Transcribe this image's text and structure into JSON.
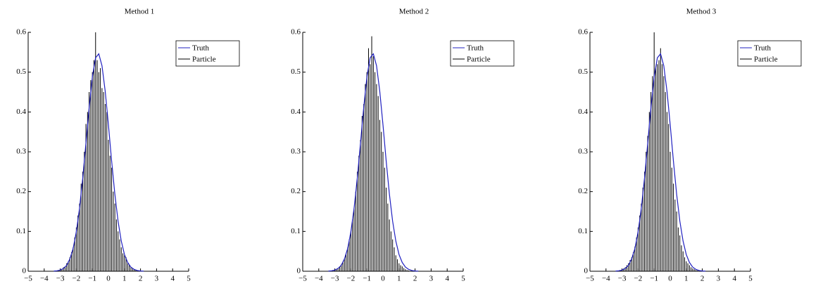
{
  "chart_data": [
    {
      "type": "stem",
      "title": "Method 1",
      "legend": "upper right",
      "grid": false,
      "xlim": [
        -5,
        5
      ],
      "ylim": [
        0,
        0.6
      ],
      "xticks": [
        {
          "value": -5,
          "label": "−5"
        },
        {
          "value": -4,
          "label": "−4"
        },
        {
          "value": -3,
          "label": "−3"
        },
        {
          "value": -2,
          "label": "−2"
        },
        {
          "value": -1,
          "label": "−1"
        },
        0,
        1,
        2,
        3,
        4,
        5
      ],
      "yticks": [
        0,
        0.1,
        0.2,
        0.3,
        0.4,
        0.5,
        0.6
      ],
      "series": [
        {
          "name": "Truth",
          "type": "line",
          "color": "#2020c0",
          "x": [
            -3.4,
            -3.2,
            -3.0,
            -2.8,
            -2.6,
            -2.4,
            -2.2,
            -2.0,
            -1.8,
            -1.6,
            -1.4,
            -1.2,
            -1.0,
            -0.8,
            -0.6,
            -0.4,
            -0.2,
            0,
            0.2,
            0.4,
            0.6,
            0.8,
            1.0,
            1.2,
            1.4,
            1.6,
            1.8,
            2.0,
            2.2
          ],
          "values": [
            0.0004,
            0.0012,
            0.003,
            0.007,
            0.015,
            0.031,
            0.057,
            0.099,
            0.158,
            0.234,
            0.322,
            0.411,
            0.488,
            0.536,
            0.546,
            0.516,
            0.452,
            0.368,
            0.277,
            0.194,
            0.126,
            0.076,
            0.042,
            0.022,
            0.0105,
            0.0047,
            0.0019,
            0.0007,
            0.0003
          ]
        },
        {
          "name": "Particle",
          "type": "stem",
          "color": "#000000",
          "x": [
            -3.1,
            -3.0,
            -2.9,
            -2.8,
            -2.7,
            -2.6,
            -2.5,
            -2.4,
            -2.3,
            -2.2,
            -2.1,
            -2.0,
            -1.9,
            -1.8,
            -1.7,
            -1.6,
            -1.5,
            -1.4,
            -1.3,
            -1.2,
            -1.1,
            -1.0,
            -0.9,
            -0.8,
            -0.7,
            -0.6,
            -0.5,
            -0.4,
            -0.3,
            -0.2,
            -0.1,
            0,
            0.1,
            0.2,
            0.3,
            0.4,
            0.5,
            0.6,
            0.7,
            0.8,
            0.9,
            1.0,
            1.1,
            1.2,
            1.3,
            1.4,
            1.5,
            1.6,
            1.7,
            1.8,
            1.9
          ],
          "values": [
            0.002,
            0.004,
            0.006,
            0.01,
            0.012,
            0.02,
            0.025,
            0.035,
            0.048,
            0.06,
            0.085,
            0.11,
            0.14,
            0.17,
            0.22,
            0.25,
            0.3,
            0.37,
            0.4,
            0.45,
            0.48,
            0.5,
            0.53,
            0.6,
            0.53,
            0.5,
            0.51,
            0.46,
            0.45,
            0.42,
            0.4,
            0.33,
            0.29,
            0.26,
            0.2,
            0.17,
            0.13,
            0.1,
            0.08,
            0.06,
            0.045,
            0.04,
            0.035,
            0.02,
            0.015,
            0.01,
            0.007,
            0.005,
            0.003,
            0.002,
            0.001
          ]
        }
      ]
    },
    {
      "type": "stem",
      "title": "Method 2",
      "legend": "upper right",
      "grid": false,
      "xlim": [
        -5,
        5
      ],
      "ylim": [
        0,
        0.6
      ],
      "xticks": [
        {
          "value": -5,
          "label": "−5"
        },
        {
          "value": -4,
          "label": "−4"
        },
        {
          "value": -3,
          "label": "−3"
        },
        {
          "value": -2,
          "label": "−2"
        },
        {
          "value": -1,
          "label": "−1"
        },
        0,
        1,
        2,
        3,
        4,
        5
      ],
      "yticks": [
        0,
        0.1,
        0.2,
        0.3,
        0.4,
        0.5,
        0.6
      ],
      "series": [
        {
          "name": "Truth",
          "type": "line",
          "color": "#2020c0",
          "x": [
            -3.4,
            -3.2,
            -3.0,
            -2.8,
            -2.6,
            -2.4,
            -2.2,
            -2.0,
            -1.8,
            -1.6,
            -1.4,
            -1.2,
            -1.0,
            -0.8,
            -0.6,
            -0.4,
            -0.2,
            0,
            0.2,
            0.4,
            0.6,
            0.8,
            1.0,
            1.2,
            1.4,
            1.6,
            1.8,
            2.0,
            2.2
          ],
          "values": [
            0.0004,
            0.0012,
            0.003,
            0.007,
            0.015,
            0.031,
            0.057,
            0.099,
            0.158,
            0.234,
            0.322,
            0.411,
            0.488,
            0.536,
            0.546,
            0.516,
            0.452,
            0.368,
            0.277,
            0.194,
            0.126,
            0.076,
            0.042,
            0.022,
            0.0105,
            0.0047,
            0.0019,
            0.0007,
            0.0003
          ]
        },
        {
          "name": "Particle",
          "type": "stem",
          "color": "#000000",
          "x": [
            -3.1,
            -3.0,
            -2.9,
            -2.8,
            -2.7,
            -2.6,
            -2.5,
            -2.4,
            -2.3,
            -2.2,
            -2.1,
            -2.0,
            -1.9,
            -1.8,
            -1.7,
            -1.6,
            -1.5,
            -1.4,
            -1.3,
            -1.2,
            -1.1,
            -1.0,
            -0.9,
            -0.8,
            -0.7,
            -0.6,
            -0.5,
            -0.4,
            -0.3,
            -0.2,
            -0.1,
            0,
            0.1,
            0.2,
            0.3,
            0.4,
            0.5,
            0.6,
            0.7,
            0.8,
            0.9,
            1.0,
            1.1,
            1.2,
            1.3,
            1.4,
            1.5,
            1.6,
            1.7,
            1.8,
            1.9
          ],
          "values": [
            0.001,
            0.003,
            0.005,
            0.008,
            0.012,
            0.017,
            0.024,
            0.032,
            0.045,
            0.06,
            0.08,
            0.1,
            0.13,
            0.16,
            0.2,
            0.25,
            0.29,
            0.33,
            0.39,
            0.42,
            0.47,
            0.5,
            0.56,
            0.52,
            0.59,
            0.54,
            0.5,
            0.47,
            0.44,
            0.38,
            0.35,
            0.3,
            0.26,
            0.21,
            0.17,
            0.13,
            0.1,
            0.08,
            0.06,
            0.04,
            0.03,
            0.02,
            0.015,
            0.012,
            0.008,
            0.005,
            0.003,
            0.002,
            0.001,
            0.001,
            0.0005
          ]
        }
      ]
    },
    {
      "type": "stem",
      "title": "Method 3",
      "legend": "upper right",
      "grid": false,
      "xlim": [
        -5,
        5
      ],
      "ylim": [
        0,
        0.6
      ],
      "xticks": [
        {
          "value": -5,
          "label": "−5"
        },
        {
          "value": -4,
          "label": "−4"
        },
        {
          "value": -3,
          "label": "−3"
        },
        {
          "value": -2,
          "label": "−2"
        },
        {
          "value": -1,
          "label": "−1"
        },
        0,
        1,
        2,
        3,
        4,
        5
      ],
      "yticks": [
        0,
        0.1,
        0.2,
        0.3,
        0.4,
        0.5,
        0.6
      ],
      "series": [
        {
          "name": "Truth",
          "type": "line",
          "color": "#2020c0",
          "x": [
            -3.4,
            -3.2,
            -3.0,
            -2.8,
            -2.6,
            -2.4,
            -2.2,
            -2.0,
            -1.8,
            -1.6,
            -1.4,
            -1.2,
            -1.0,
            -0.8,
            -0.6,
            -0.4,
            -0.2,
            0,
            0.2,
            0.4,
            0.6,
            0.8,
            1.0,
            1.2,
            1.4,
            1.6,
            1.8,
            2.0,
            2.2
          ],
          "values": [
            0.0004,
            0.0012,
            0.003,
            0.007,
            0.015,
            0.031,
            0.057,
            0.099,
            0.158,
            0.234,
            0.322,
            0.411,
            0.488,
            0.536,
            0.546,
            0.516,
            0.452,
            0.368,
            0.277,
            0.194,
            0.126,
            0.076,
            0.042,
            0.022,
            0.0105,
            0.0047,
            0.0019,
            0.0007,
            0.0003
          ]
        },
        {
          "name": "Particle",
          "type": "stem",
          "color": "#000000",
          "x": [
            -3.1,
            -3.0,
            -2.9,
            -2.8,
            -2.7,
            -2.6,
            -2.5,
            -2.4,
            -2.3,
            -2.2,
            -2.1,
            -2.0,
            -1.9,
            -1.8,
            -1.7,
            -1.6,
            -1.5,
            -1.4,
            -1.3,
            -1.2,
            -1.1,
            -1.0,
            -0.9,
            -0.8,
            -0.7,
            -0.6,
            -0.5,
            -0.4,
            -0.3,
            -0.2,
            -0.1,
            0,
            0.1,
            0.2,
            0.3,
            0.4,
            0.5,
            0.6,
            0.7,
            0.8,
            0.9,
            1.0,
            1.1,
            1.2,
            1.3,
            1.4,
            1.5,
            1.6,
            1.7,
            1.8,
            1.9
          ],
          "values": [
            0.002,
            0.004,
            0.007,
            0.01,
            0.015,
            0.02,
            0.028,
            0.035,
            0.048,
            0.062,
            0.085,
            0.11,
            0.14,
            0.17,
            0.21,
            0.25,
            0.3,
            0.34,
            0.4,
            0.45,
            0.49,
            0.6,
            0.51,
            0.52,
            0.53,
            0.56,
            0.52,
            0.49,
            0.45,
            0.4,
            0.37,
            0.3,
            0.26,
            0.22,
            0.18,
            0.15,
            0.11,
            0.09,
            0.065,
            0.05,
            0.035,
            0.025,
            0.02,
            0.015,
            0.01,
            0.007,
            0.005,
            0.003,
            0.002,
            0.001,
            0.001
          ]
        }
      ]
    }
  ]
}
